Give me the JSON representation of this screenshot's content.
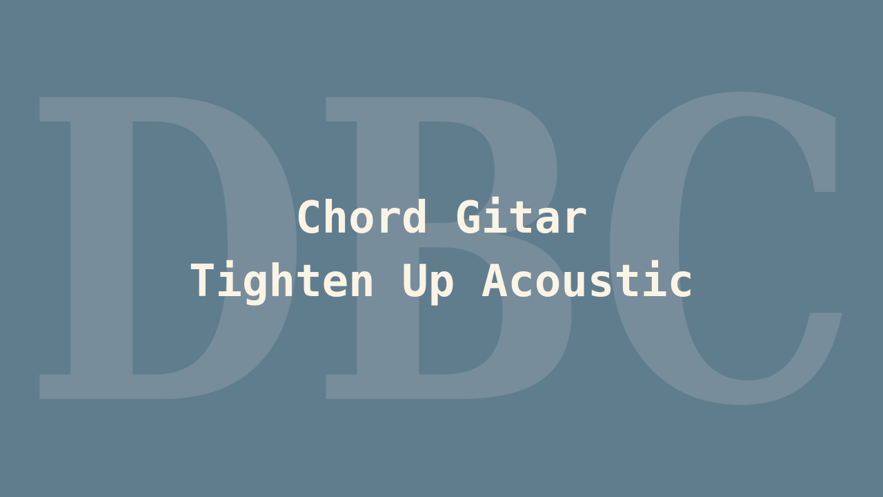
{
  "watermark": {
    "text": "DBC",
    "color": "#778d9b"
  },
  "title": {
    "line1": "Chord Gitar",
    "line2": "Tighten Up Acoustic",
    "color": "#fbf3e4"
  },
  "background": {
    "color": "#607d8e"
  }
}
